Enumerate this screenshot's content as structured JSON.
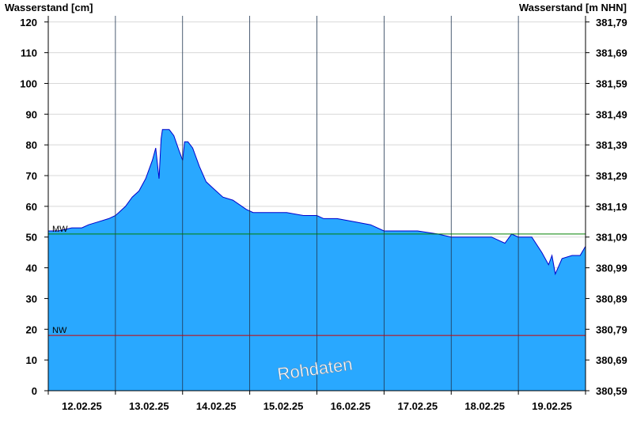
{
  "chart_data": {
    "type": "area",
    "ylabel_left": "Wasserstand [cm]",
    "ylabel_right": "Wasserstand [m NHN]",
    "watermark": "Rohdaten",
    "ylim": [
      0,
      122
    ],
    "xlim": [
      0,
      8
    ],
    "y_ticks": [
      0,
      10,
      20,
      30,
      40,
      50,
      60,
      70,
      80,
      90,
      100,
      110,
      120
    ],
    "y_tick_labels": [
      "0",
      "10",
      "20",
      "30",
      "40",
      "50",
      "60",
      "70",
      "80",
      "90",
      "100",
      "110",
      "120"
    ],
    "y2_tick_labels": [
      "380,59",
      "380,69",
      "380,79",
      "380,89",
      "380,99",
      "381,09",
      "381,19",
      "381,29",
      "381,39",
      "381,49",
      "381,59",
      "381,69",
      "381,79"
    ],
    "x_tick_labels": [
      "12.02.25",
      "13.02.25",
      "14.02.25",
      "15.02.25",
      "16.02.25",
      "17.02.25",
      "18.02.25",
      "19.02.25"
    ],
    "day_boundaries": [
      1,
      2,
      3,
      4,
      5,
      6,
      7
    ],
    "reference_lines": [
      {
        "label": "MW",
        "value": 51,
        "color": "#008000"
      },
      {
        "label": "NW",
        "value": 18,
        "color": "#cc0000"
      }
    ],
    "fill_color": "#29a8ff",
    "line_color": "#0000cc",
    "series": [
      {
        "x": [
          0,
          0.15,
          0.35,
          0.5,
          0.6,
          0.75,
          0.9,
          1.0,
          1.05,
          1.15,
          1.25,
          1.35,
          1.45,
          1.55,
          1.6,
          1.65,
          1.68,
          1.7,
          1.75,
          1.8,
          1.87,
          1.95,
          2.0,
          2.03,
          2.08,
          2.15,
          2.25,
          2.35,
          2.45,
          2.6,
          2.75,
          2.95,
          3.05,
          3.15,
          3.35,
          3.55,
          3.8,
          4.0,
          4.1,
          4.3,
          4.55,
          4.8,
          5.0,
          5.2,
          5.5,
          5.8,
          6.0,
          6.3,
          6.6,
          6.8,
          6.9,
          7.0,
          7.1,
          7.2,
          7.35,
          7.45,
          7.5,
          7.55,
          7.65,
          7.8,
          7.92,
          8.0
        ],
        "values": [
          52,
          52,
          53,
          53,
          54,
          55,
          56,
          57,
          58,
          60,
          63,
          65,
          69,
          75,
          79,
          69,
          82,
          85,
          85,
          85,
          83,
          78,
          75,
          81,
          81,
          79,
          73,
          68,
          66,
          63,
          62,
          59,
          58,
          58,
          58,
          58,
          57,
          57,
          56,
          56,
          55,
          54,
          52,
          52,
          52,
          51,
          50,
          50,
          50,
          48,
          51,
          50,
          50,
          50,
          45,
          41,
          44,
          38,
          43,
          44,
          44,
          47
        ]
      }
    ]
  }
}
